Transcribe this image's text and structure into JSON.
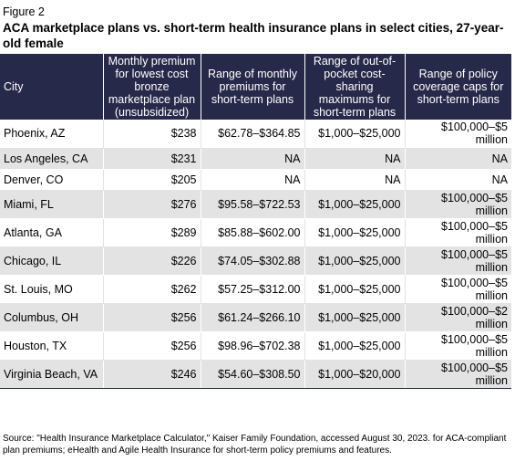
{
  "figure_label": "Figure 2",
  "title": "ACA marketplace plans vs. short-term health insurance plans in select cities, 27-year-old female",
  "table": {
    "headers": [
      "City",
      "Monthly premium for lowest cost bronze marketplace plan (unsubsidized)",
      "Range of monthly premiums for short-term plans",
      "Range of out-of-pocket cost-sharing maximums for short-term plans",
      "Range of policy coverage caps for short-term plans"
    ],
    "rows": [
      [
        "Phoenix, AZ",
        "$238",
        "$62.78–$364.85",
        "$1,000–$25,000",
        "$100,000–$5 million"
      ],
      [
        "Los Angeles, CA",
        "$231",
        "NA",
        "NA",
        "NA"
      ],
      [
        "Denver, CO",
        "$205",
        "NA",
        "NA",
        "NA"
      ],
      [
        "Miami, FL",
        "$276",
        "$95.58–$722.53",
        "$1,000–$25,000",
        "$100,000–$5 million"
      ],
      [
        "Atlanta, GA",
        "$289",
        "$85.88–$602.00",
        "$1,000–$25,000",
        "$100,000–$5 million"
      ],
      [
        "Chicago, IL",
        "$226",
        "$74.05–$302.88",
        "$1,000–$25,000",
        "$100,000–$5 million"
      ],
      [
        "St. Louis, MO",
        "$262",
        "$57.25–$312.00",
        "$1,000–$25,000",
        "$100,000–$5 million"
      ],
      [
        "Columbus, OH",
        "$256",
        "$61.24–$266.10",
        "$1,000–$25,000",
        "$100,000–$2 million"
      ],
      [
        "Houston, TX",
        "$256",
        "$98.96–$702.38",
        "$1,000–$25,000",
        "$100,000–$5 million"
      ],
      [
        "Virginia Beach, VA",
        "$246",
        "$54.60–$308.50",
        "$1,000–$20,000",
        "$100,000–$5 million"
      ]
    ]
  },
  "source": "Source: \"Health Insurance Marketplace Calculator,\" Kaiser Family Foundation, accessed August 30, 2023. for ACA-compliant plan premiums; eHealth and Agile Health Insurance for short-term policy premiums and features.",
  "colors": {
    "header_bg": "#27294a",
    "stripe_bg": "#e3e3e3"
  }
}
